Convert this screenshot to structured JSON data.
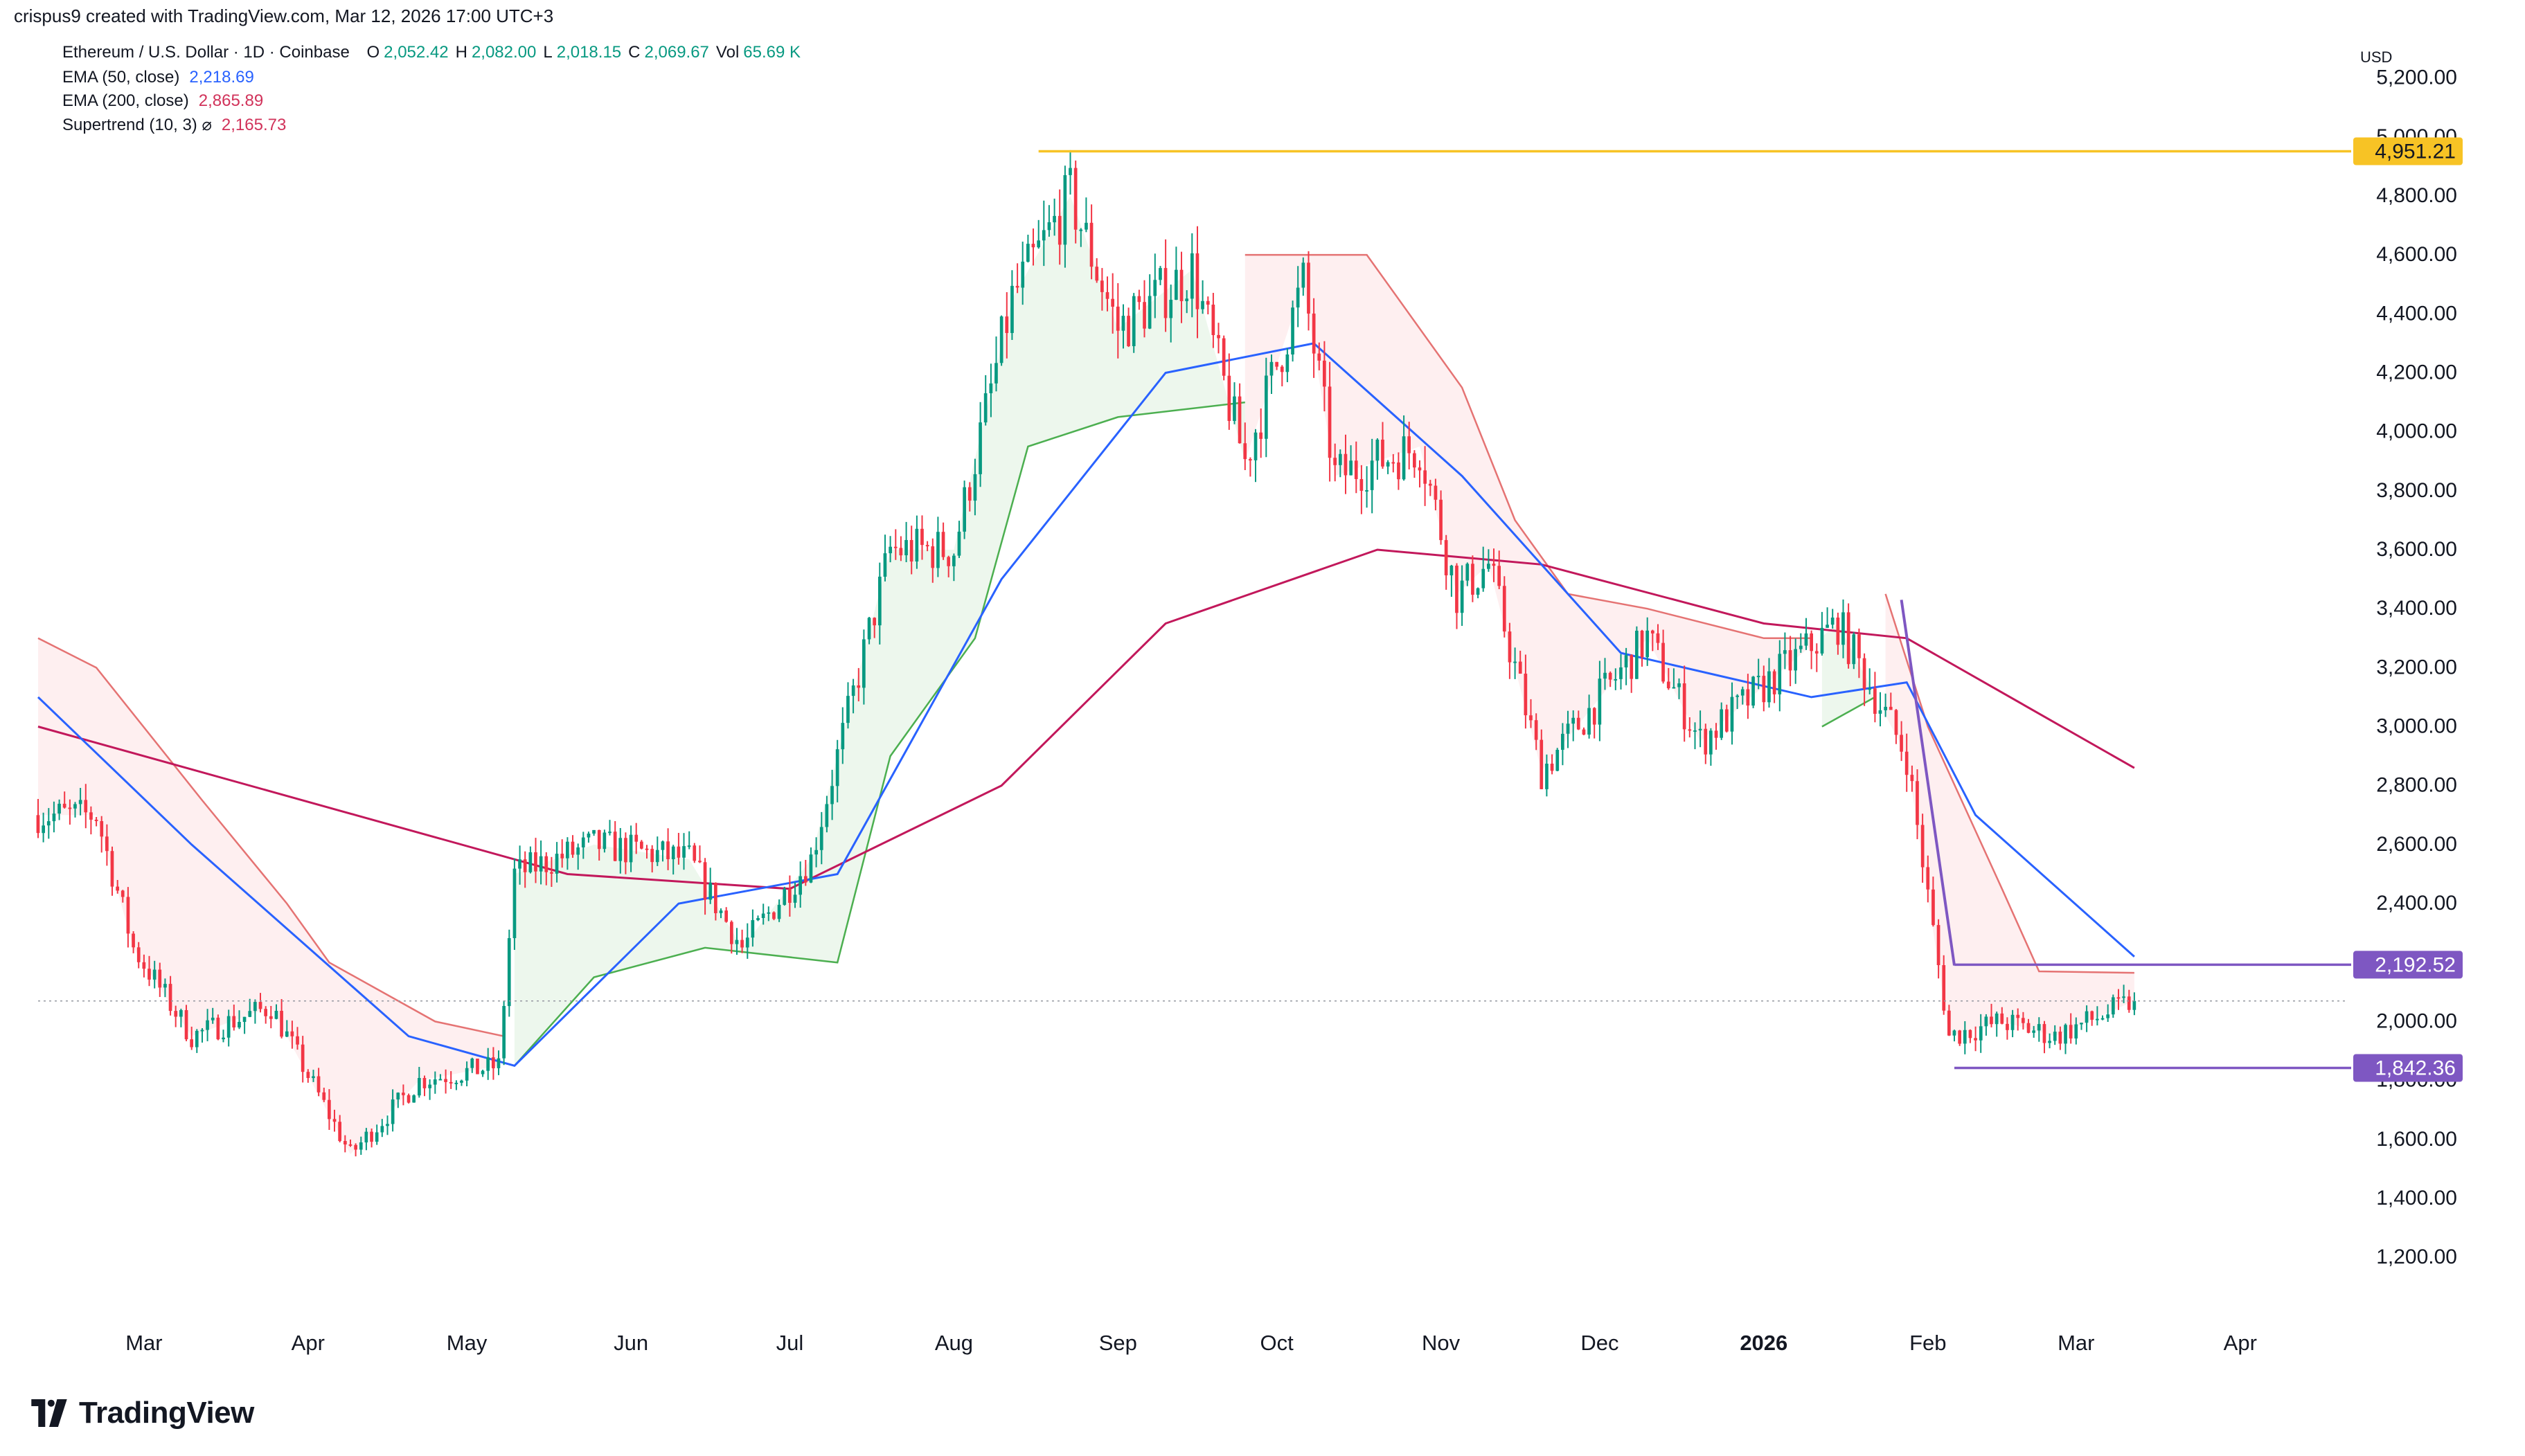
{
  "header": {
    "credit": "crispus9 created with TradingView.com, Mar 12, 2026 17:00 UTC+3",
    "symbol": "Ethereum / U.S. Dollar · 1D · Coinbase",
    "ohlcv": [
      {
        "k": "O",
        "v": "2,052.42"
      },
      {
        "k": "H",
        "v": "2,082.00"
      },
      {
        "k": "L",
        "v": "2,018.15"
      },
      {
        "k": "C",
        "v": "2,069.67"
      },
      {
        "k": "Vol",
        "v": "65.69 K"
      }
    ],
    "indicators": [
      {
        "label": "EMA (50, close)",
        "value": "2,218.69",
        "color": "#2962ff"
      },
      {
        "label": "EMA (200, close)",
        "value": "2,865.89",
        "color": "#d1325a"
      },
      {
        "label": "Supertrend (10, 3) ⌀",
        "value": "2,165.73",
        "color": "#d1325a"
      }
    ],
    "ohlc_color": "#089981"
  },
  "branding": {
    "name": "TradingView"
  },
  "chart_data": {
    "type": "candlestick",
    "currency": "USD",
    "ylim": [
      1050,
      5300
    ],
    "yticks": [
      "5,200.00",
      "5,000.00",
      "4,800.00",
      "4,600.00",
      "4,400.00",
      "4,200.00",
      "4,000.00",
      "3,800.00",
      "3,600.00",
      "3,400.00",
      "3,200.00",
      "3,000.00",
      "2,800.00",
      "2,600.00",
      "2,400.00",
      "2,200.00",
      "2,000.00",
      "1,800.00",
      "1,600.00",
      "1,400.00",
      "1,200.00"
    ],
    "xticks": [
      {
        "label": "Mar",
        "date": "2025-03-01",
        "bold": false
      },
      {
        "label": "Apr",
        "date": "2025-04-01",
        "bold": false
      },
      {
        "label": "May",
        "date": "2025-05-01",
        "bold": false
      },
      {
        "label": "Jun",
        "date": "2025-06-01",
        "bold": false
      },
      {
        "label": "Jul",
        "date": "2025-07-01",
        "bold": false
      },
      {
        "label": "Aug",
        "date": "2025-08-01",
        "bold": false
      },
      {
        "label": "Sep",
        "date": "2025-09-01",
        "bold": false
      },
      {
        "label": "Oct",
        "date": "2025-10-01",
        "bold": false
      },
      {
        "label": "Nov",
        "date": "2025-11-01",
        "bold": false
      },
      {
        "label": "Dec",
        "date": "2025-12-01",
        "bold": false
      },
      {
        "label": "2026",
        "date": "2026-01-01",
        "bold": true
      },
      {
        "label": "Feb",
        "date": "2026-02-01",
        "bold": true
      },
      {
        "label": "Mar",
        "date": "2026-03-01",
        "bold": false
      },
      {
        "label": "Apr",
        "date": "2026-04-01",
        "bold": false
      }
    ],
    "xlim": [
      "2025-02-09",
      "2026-04-20"
    ],
    "price_path": [
      [
        "2025-02-09",
        2700
      ],
      [
        "2025-02-20",
        2700
      ],
      [
        "2025-02-27",
        2250
      ],
      [
        "2025-03-10",
        1950
      ],
      [
        "2025-03-25",
        2050
      ],
      [
        "2025-04-09",
        1550
      ],
      [
        "2025-04-22",
        1800
      ],
      [
        "2025-05-07",
        1850
      ],
      [
        "2025-05-10",
        2500
      ],
      [
        "2025-05-25",
        2600
      ],
      [
        "2025-06-12",
        2550
      ],
      [
        "2025-06-22",
        2250
      ],
      [
        "2025-07-05",
        2550
      ],
      [
        "2025-07-20",
        3600
      ],
      [
        "2025-08-01",
        3600
      ],
      [
        "2025-08-12",
        4450
      ],
      [
        "2025-08-23",
        4800
      ],
      [
        "2025-09-01",
        4350
      ],
      [
        "2025-09-15",
        4550
      ],
      [
        "2025-09-25",
        3900
      ],
      [
        "2025-10-06",
        4500
      ],
      [
        "2025-10-12",
        3850
      ],
      [
        "2025-10-28",
        3950
      ],
      [
        "2025-11-04",
        3450
      ],
      [
        "2025-11-10",
        3550
      ],
      [
        "2025-11-20",
        2850
      ],
      [
        "2025-12-10",
        3300
      ],
      [
        "2025-12-20",
        2950
      ],
      [
        "2026-01-05",
        3200
      ],
      [
        "2026-01-15",
        3350
      ],
      [
        "2026-01-28",
        2900
      ],
      [
        "2026-02-05",
        1950
      ],
      [
        "2026-02-15",
        2000
      ],
      [
        "2026-02-25",
        1950
      ],
      [
        "2026-03-12",
        2070
      ]
    ],
    "ema50_path": [
      [
        "2025-02-09",
        3100
      ],
      [
        "2025-03-10",
        2600
      ],
      [
        "2025-04-20",
        1950
      ],
      [
        "2025-05-10",
        1850
      ],
      [
        "2025-06-10",
        2400
      ],
      [
        "2025-07-10",
        2500
      ],
      [
        "2025-08-10",
        3500
      ],
      [
        "2025-09-10",
        4200
      ],
      [
        "2025-10-08",
        4300
      ],
      [
        "2025-11-05",
        3850
      ],
      [
        "2025-12-05",
        3250
      ],
      [
        "2026-01-10",
        3100
      ],
      [
        "2026-01-28",
        3150
      ],
      [
        "2026-02-10",
        2700
      ],
      [
        "2026-03-12",
        2220
      ]
    ],
    "ema200_path": [
      [
        "2025-02-09",
        3000
      ],
      [
        "2025-04-10",
        2700
      ],
      [
        "2025-05-20",
        2500
      ],
      [
        "2025-07-01",
        2450
      ],
      [
        "2025-08-10",
        2800
      ],
      [
        "2025-09-10",
        3350
      ],
      [
        "2025-10-20",
        3600
      ],
      [
        "2025-11-20",
        3550
      ],
      [
        "2026-01-01",
        3350
      ],
      [
        "2026-01-28",
        3300
      ],
      [
        "2026-03-12",
        2860
      ]
    ],
    "supertrend_segments": [
      {
        "trend": "down",
        "points": [
          [
            "2025-02-09",
            3300
          ],
          [
            "2025-02-20",
            3200
          ],
          [
            "2025-03-12",
            2750
          ],
          [
            "2025-03-28",
            2400
          ],
          [
            "2025-04-05",
            2200
          ],
          [
            "2025-04-25",
            2000
          ],
          [
            "2025-05-08",
            1950
          ]
        ]
      },
      {
        "trend": "up",
        "points": [
          [
            "2025-05-10",
            1850
          ],
          [
            "2025-05-25",
            2150
          ],
          [
            "2025-06-15",
            2250
          ],
          [
            "2025-07-10",
            2200
          ],
          [
            "2025-07-20",
            2900
          ],
          [
            "2025-08-05",
            3300
          ],
          [
            "2025-08-15",
            3950
          ],
          [
            "2025-09-01",
            4050
          ],
          [
            "2025-09-25",
            4100
          ]
        ]
      },
      {
        "trend": "down",
        "points": [
          [
            "2025-09-25",
            4600
          ],
          [
            "2025-10-08",
            4600
          ],
          [
            "2025-10-18",
            4600
          ],
          [
            "2025-11-05",
            4150
          ],
          [
            "2025-11-15",
            3700
          ],
          [
            "2025-11-25",
            3450
          ],
          [
            "2025-12-10",
            3400
          ],
          [
            "2026-01-01",
            3300
          ],
          [
            "2026-01-10",
            3300
          ]
        ]
      },
      {
        "trend": "up",
        "points": [
          [
            "2026-01-12",
            3000
          ],
          [
            "2026-01-22",
            3100
          ]
        ]
      },
      {
        "trend": "down",
        "points": [
          [
            "2026-01-24",
            3450
          ],
          [
            "2026-02-01",
            3000
          ],
          [
            "2026-02-15",
            2450
          ],
          [
            "2026-02-22",
            2170
          ],
          [
            "2026-03-12",
            2165
          ]
        ]
      }
    ],
    "horizontal_levels": [
      {
        "value": 4951.21,
        "label": "4,951.21",
        "color": "#f7c325",
        "start": "2025-08-17"
      },
      {
        "value": 2192.52,
        "label": "2,192.52",
        "color": "#7e57c2",
        "start": "2026-02-06"
      },
      {
        "value": 1842.36,
        "label": "1,842.36",
        "color": "#7e57c2",
        "start": "2026-02-06"
      }
    ],
    "trendline": {
      "from": [
        "2026-01-27",
        3430
      ],
      "to": [
        "2026-02-06",
        2190
      ],
      "color": "#7e57c2"
    },
    "last_price": 2069.67,
    "last_date": "2026-03-12",
    "colors": {
      "up": "#089981",
      "down": "#f23645",
      "ema50": "#2962ff",
      "ema200": "#c2185b",
      "st_up": "#4caf50",
      "st_down": "#e57373"
    }
  }
}
